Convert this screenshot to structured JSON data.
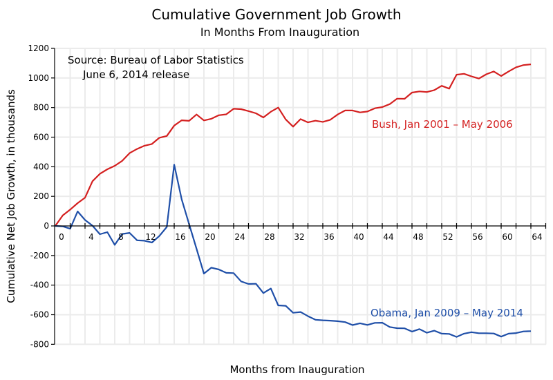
{
  "chart_data": {
    "type": "line",
    "title": "Cumulative Government Job Growth",
    "subtitle": "In Months From Inauguration",
    "xlabel": "Months from Inauguration",
    "ylabel": "Cumulative Net Job Growth, in thousands",
    "xlim": [
      0,
      66
    ],
    "ylim": [
      -800,
      1200
    ],
    "x_ticks": [
      0,
      4,
      8,
      12,
      16,
      20,
      24,
      28,
      32,
      36,
      40,
      44,
      48,
      52,
      56,
      60,
      64
    ],
    "y_ticks": [
      -800,
      -600,
      -400,
      -200,
      0,
      200,
      400,
      600,
      800,
      1000,
      1200
    ],
    "grid": true,
    "annotations": [
      {
        "text": "Source:  Bureau of Labor Statistics"
      },
      {
        "text": "June 6, 2014 release"
      }
    ],
    "series": [
      {
        "name": "Bush, Jan 2001 – May 2006",
        "color": "#d42020",
        "values": [
          0,
          71,
          110,
          154,
          191,
          302,
          352,
          383,
          406,
          440,
          492,
          520,
          542,
          554,
          596,
          608,
          678,
          714,
          710,
          753,
          713,
          724,
          748,
          754,
          792,
          789,
          776,
          761,
          733,
          772,
          800,
          720,
          671,
          722,
          700,
          711,
          703,
          717,
          753,
          780,
          780,
          767,
          773,
          795,
          803,
          823,
          860,
          859,
          901,
          909,
          905,
          918,
          947,
          928,
          1022,
          1028,
          1011,
          996,
          1025,
          1044,
          1013,
          1044,
          1072,
          1087,
          1092
        ]
      },
      {
        "name": "Obama, Jan 2009 – May 2014",
        "color": "#1f4fa8",
        "values": [
          0,
          -3,
          -19,
          98,
          40,
          2,
          -56,
          -42,
          -128,
          -54,
          -47,
          -97,
          -100,
          -112,
          -68,
          -7,
          414,
          180,
          13,
          -154,
          -322,
          -282,
          -294,
          -317,
          -319,
          -375,
          -392,
          -391,
          -454,
          -423,
          -537,
          -540,
          -587,
          -582,
          -610,
          -634,
          -638,
          -640,
          -644,
          -650,
          -670,
          -658,
          -669,
          -655,
          -654,
          -683,
          -691,
          -692,
          -714,
          -697,
          -722,
          -708,
          -728,
          -730,
          -750,
          -728,
          -718,
          -725,
          -725,
          -727,
          -748,
          -728,
          -724,
          -713,
          -711
        ]
      }
    ]
  }
}
